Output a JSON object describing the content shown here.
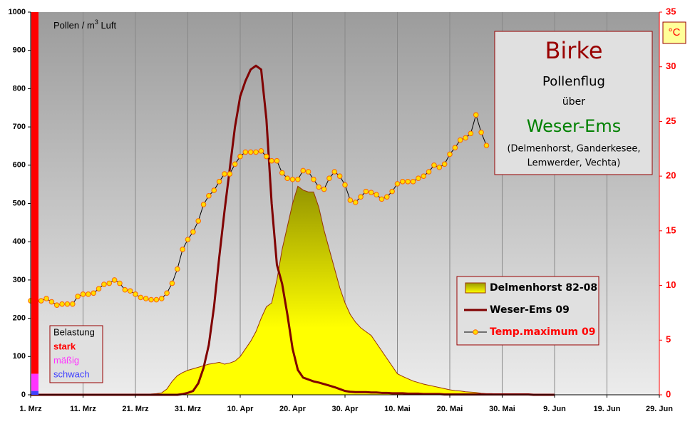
{
  "chart_data": {
    "type": "line",
    "y_label": [
      "Pollen / m",
      "3",
      " Luft"
    ],
    "y2_label": "°C",
    "info_box": {
      "title": "Birke",
      "subtitle": "Pollenflug",
      "connector": "über",
      "region": "Weser-Ems",
      "places": [
        "(Delmenhorst, Ganderkesee,",
        "Lemwerder, Vechta)"
      ]
    },
    "load_levels": {
      "title": "Belastung",
      "levels": [
        {
          "name": "stark",
          "color": "#ff0000",
          "upper": 1000
        },
        {
          "name": "mäßig",
          "color": "#ff33ff",
          "upper": 55
        },
        {
          "name": "schwach",
          "color": "#4040ff",
          "upper": 10
        }
      ]
    },
    "xlim": [
      0,
      120
    ],
    "xticks": [
      {
        "value": 0,
        "label": "1. Mrz"
      },
      {
        "value": 10,
        "label": "11. Mrz"
      },
      {
        "value": 20,
        "label": "21. Mrz"
      },
      {
        "value": 30,
        "label": "31. Mrz"
      },
      {
        "value": 40,
        "label": "10. Apr"
      },
      {
        "value": 50,
        "label": "20. Apr"
      },
      {
        "value": 60,
        "label": "30. Apr"
      },
      {
        "value": 70,
        "label": "10. Mai"
      },
      {
        "value": 80,
        "label": "20. Mai"
      },
      {
        "value": 90,
        "label": "30. Mai"
      },
      {
        "value": 100,
        "label": "9. Jun"
      },
      {
        "value": 110,
        "label": "19. Jun"
      },
      {
        "value": 120,
        "label": "29. Jun"
      }
    ],
    "ylim": [
      0,
      1000
    ],
    "yticks": [
      0,
      100,
      200,
      300,
      400,
      500,
      600,
      700,
      800,
      900,
      1000
    ],
    "y2lim": [
      0,
      35
    ],
    "y2ticks": [
      0,
      5,
      10,
      15,
      20,
      25,
      30,
      35
    ],
    "y2_color": "#ff0000",
    "grid": true,
    "legend": "lower right",
    "x": [
      0,
      1,
      2,
      3,
      4,
      5,
      6,
      7,
      8,
      9,
      10,
      11,
      12,
      13,
      14,
      15,
      16,
      17,
      18,
      19,
      20,
      21,
      22,
      23,
      24,
      25,
      26,
      27,
      28,
      29,
      30,
      31,
      32,
      33,
      34,
      35,
      36,
      37,
      38,
      39,
      40,
      41,
      42,
      43,
      44,
      45,
      46,
      47,
      48,
      49,
      50,
      51,
      52,
      53,
      54,
      55,
      56,
      57,
      58,
      59,
      60,
      61,
      62,
      63,
      64,
      65,
      66,
      67,
      68,
      69,
      70,
      71,
      72,
      73,
      74,
      75,
      76,
      77,
      78,
      79,
      80,
      81,
      82,
      83,
      84,
      85,
      86,
      87,
      88,
      89,
      90,
      91,
      92,
      93,
      94,
      95,
      96,
      97,
      98,
      99,
      100
    ],
    "series": [
      {
        "name": "Delmenhorst 82-08",
        "type": "area",
        "color": "#999900",
        "color_low": "#ffff00",
        "edge_color": "#993300",
        "legend_text_color": "#000000",
        "values": [
          0,
          0,
          0,
          0,
          0,
          0,
          0,
          0,
          0,
          0,
          0,
          0,
          0,
          0,
          0,
          0,
          0,
          0,
          0,
          0,
          0,
          0,
          0,
          2,
          3,
          5,
          15,
          35,
          50,
          58,
          64,
          68,
          72,
          76,
          80,
          82,
          85,
          80,
          83,
          88,
          100,
          120,
          140,
          165,
          200,
          230,
          240,
          300,
          380,
          440,
          500,
          545,
          535,
          530,
          530,
          490,
          430,
          380,
          330,
          280,
          240,
          210,
          190,
          175,
          165,
          155,
          135,
          115,
          95,
          75,
          55,
          48,
          42,
          36,
          32,
          28,
          25,
          22,
          19,
          16,
          13,
          11,
          10,
          8,
          7,
          6,
          4,
          3,
          3,
          2,
          1,
          0,
          0,
          0,
          0,
          0,
          0,
          0,
          0,
          0,
          0
        ]
      },
      {
        "name": "Weser-Ems 09",
        "type": "line",
        "color": "#800000",
        "legend_text_color": "#000000",
        "values": [
          0,
          0,
          0,
          0,
          0,
          0,
          0,
          0,
          0,
          0,
          0,
          0,
          0,
          0,
          0,
          0,
          0,
          0,
          0,
          0,
          0,
          0,
          0,
          0,
          0,
          0,
          0,
          0,
          0,
          2,
          5,
          10,
          30,
          70,
          130,
          230,
          360,
          480,
          590,
          700,
          780,
          820,
          850,
          860,
          850,
          720,
          500,
          340,
          290,
          210,
          120,
          65,
          45,
          40,
          35,
          32,
          28,
          24,
          20,
          15,
          10,
          8,
          7,
          7,
          7,
          6,
          6,
          5,
          5,
          4,
          4,
          4,
          3,
          3,
          3,
          2,
          2,
          2,
          2,
          1,
          1,
          1,
          1,
          1,
          1,
          1,
          1,
          1,
          1,
          1,
          1,
          1,
          1,
          1,
          1,
          1,
          0,
          0,
          0,
          0,
          0
        ]
      },
      {
        "name": "Temp.maximum 09",
        "type": "line",
        "axis": "y2",
        "color": "#000000",
        "marker_color": "#ffdd00",
        "marker_edge": "#ff6600",
        "legend_text_color": "#ff0000",
        "values": [
          8.6,
          8.5,
          8.6,
          8.8,
          8.5,
          8.2,
          8.3,
          8.3,
          8.3,
          9.0,
          9.2,
          9.2,
          9.3,
          9.7,
          10.1,
          10.2,
          10.5,
          10.2,
          9.6,
          9.5,
          9.2,
          8.9,
          8.8,
          8.7,
          8.7,
          8.8,
          9.3,
          10.2,
          11.5,
          13.3,
          14.2,
          14.9,
          15.9,
          17.4,
          18.2,
          18.7,
          19.5,
          20.2,
          20.2,
          21.1,
          21.8,
          22.2,
          22.2,
          22.2,
          22.3,
          21.8,
          21.4,
          21.4,
          20.3,
          19.8,
          19.7,
          19.7,
          20.5,
          20.4,
          19.7,
          19.0,
          18.8,
          19.8,
          20.4,
          20.0,
          19.2,
          17.8,
          17.6,
          18.1,
          18.6,
          18.5,
          18.3,
          17.9,
          18.1,
          18.6,
          19.3,
          19.5,
          19.5,
          19.5,
          19.8,
          20.0,
          20.4,
          21.0,
          20.8,
          21.1,
          22.0,
          22.6,
          23.3,
          23.5,
          23.9,
          25.6,
          24.0,
          22.8,
          null,
          null,
          null,
          null,
          null,
          null,
          null,
          null,
          null,
          null,
          null,
          null,
          null
        ]
      }
    ]
  }
}
